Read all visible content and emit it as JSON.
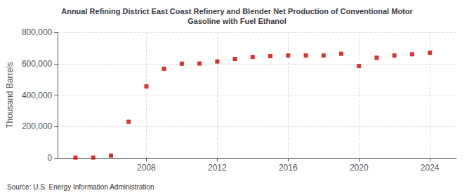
{
  "chart_data": {
    "type": "scatter",
    "title": "Annual Refining District East Coast Refinery and Blender Net Production of Conventional Motor\nGasoline with Fuel Ethanol",
    "ylabel": "Thousand Barrels",
    "annotations": [
      "Source: U.S. Energy Information Administration"
    ],
    "x": [
      2004,
      2005,
      2006,
      2007,
      2008,
      2009,
      2010,
      2011,
      2012,
      2013,
      2014,
      2015,
      2016,
      2017,
      2018,
      2019,
      2020,
      2021,
      2022,
      2023,
      2024
    ],
    "values": [
      2000,
      2000,
      15000,
      230000,
      455000,
      568000,
      600000,
      601000,
      614000,
      630000,
      643000,
      648000,
      652000,
      652000,
      652000,
      663000,
      585000,
      638000,
      652000,
      660000,
      670000
    ],
    "color": "#cc0000",
    "marker": "square",
    "xlim": [
      2003,
      2025.5
    ],
    "xticks": [
      2008,
      2012,
      2016,
      2020,
      2024
    ],
    "ylim": [
      0,
      800000
    ],
    "yticks": [
      0,
      {
        "value": 200000,
        "label": "200,000"
      },
      {
        "value": 400000,
        "label": "400,000"
      },
      {
        "value": 600000,
        "label": "600,000"
      },
      {
        "value": 800000,
        "label": "800,000"
      }
    ],
    "grid": true
  }
}
